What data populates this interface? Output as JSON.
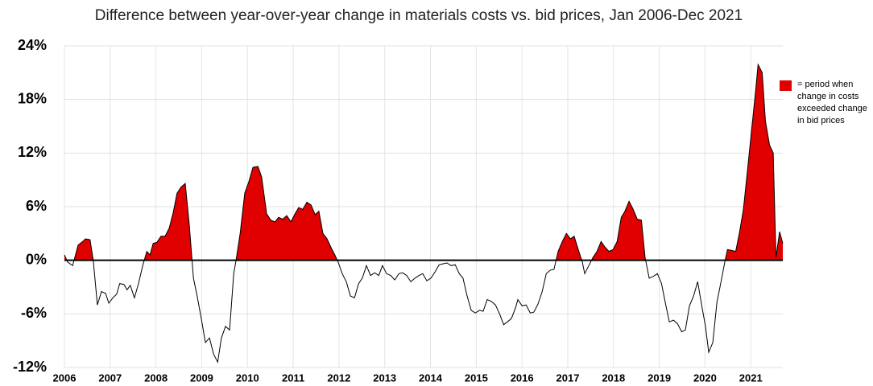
{
  "chart_data": {
    "type": "area",
    "title": "Difference between year-over-year change in materials costs vs. bid prices, Jan 2006-Dec 2021",
    "x": [
      2006.0,
      2006.07,
      2006.18,
      2006.3,
      2006.4,
      2006.46,
      2006.56,
      2006.63,
      2006.72,
      2006.81,
      2006.9,
      2006.97,
      2007.06,
      2007.14,
      2007.21,
      2007.3,
      2007.37,
      2007.44,
      2007.53,
      2007.62,
      2007.71,
      2007.8,
      2007.87,
      2007.94,
      2008.02,
      2008.11,
      2008.2,
      2008.29,
      2008.38,
      2008.46,
      2008.55,
      2008.64,
      2008.73,
      2008.82,
      2008.9,
      2008.99,
      2009.08,
      2009.17,
      2009.26,
      2009.35,
      2009.43,
      2009.52,
      2009.61,
      2009.7,
      2009.75,
      2009.84,
      2009.94,
      2010.03,
      2010.12,
      2010.23,
      2010.31,
      2010.42,
      2010.51,
      2010.6,
      2010.68,
      2010.77,
      2010.86,
      2010.95,
      2011.04,
      2011.12,
      2011.21,
      2011.3,
      2011.39,
      2011.48,
      2011.56,
      2011.65,
      2011.74,
      2011.83,
      2011.92,
      2011.99,
      2012.07,
      2012.16,
      2012.25,
      2012.34,
      2012.43,
      2012.51,
      2012.6,
      2012.69,
      2012.78,
      2012.87,
      2012.95,
      2013.04,
      2013.13,
      2013.22,
      2013.31,
      2013.39,
      2013.48,
      2013.57,
      2013.66,
      2013.75,
      2013.83,
      2013.92,
      2014.01,
      2014.1,
      2014.19,
      2014.27,
      2014.36,
      2014.45,
      2014.54,
      2014.63,
      2014.71,
      2014.8,
      2014.89,
      2014.98,
      2015.07,
      2015.15,
      2015.24,
      2015.33,
      2015.42,
      2015.51,
      2015.6,
      2015.68,
      2015.77,
      2015.86,
      2015.91,
      2016.0,
      2016.09,
      2016.18,
      2016.26,
      2016.35,
      2016.44,
      2016.53,
      2016.62,
      2016.7,
      2016.79,
      2016.88,
      2016.97,
      2017.06,
      2017.14,
      2017.23,
      2017.32,
      2017.37,
      2017.46,
      2017.55,
      2017.64,
      2017.73,
      2017.81,
      2017.9,
      2017.99,
      2018.08,
      2018.17,
      2018.25,
      2018.34,
      2018.43,
      2018.52,
      2018.61,
      2018.69,
      2018.78,
      2018.87,
      2018.96,
      2019.05,
      2019.13,
      2019.22,
      2019.31,
      2019.4,
      2019.49,
      2019.57,
      2019.66,
      2019.75,
      2019.84,
      2019.93,
      2020.01,
      2020.08,
      2020.17,
      2020.26,
      2020.35,
      2020.44,
      2020.49,
      2020.58,
      2020.67,
      2020.75,
      2020.84,
      2020.93,
      2021.02,
      2021.11,
      2021.16,
      2021.25,
      2021.32,
      2021.41,
      2021.49,
      2021.55,
      2021.63,
      2021.7
    ],
    "series": [
      {
        "name": "= period when change in costs exceeded change in bid prices",
        "color": "#e00000",
        "values": [
          0.6,
          -0.2,
          -0.6,
          1.7,
          2.1,
          2.4,
          2.3,
          0,
          -5,
          -3.5,
          -3.7,
          -4.8,
          -4.2,
          -3.8,
          -2.6,
          -2.7,
          -3.3,
          -2.8,
          -4.2,
          -2.6,
          -0.6,
          1.0,
          0.6,
          1.9,
          2.0,
          2.7,
          2.7,
          3.6,
          5.4,
          7.5,
          8.2,
          8.6,
          3.9,
          -2,
          -4,
          -6.5,
          -9.2,
          -8.7,
          -10.5,
          -11.4,
          -8.7,
          -7.4,
          -7.8,
          -1.5,
          0,
          3,
          7.5,
          8.8,
          10.4,
          10.5,
          9.3,
          5.2,
          4.5,
          4.3,
          4.8,
          4.6,
          5,
          4.3,
          5.2,
          5.9,
          5.7,
          6.5,
          6.2,
          5.1,
          5.5,
          3,
          2.4,
          1.4,
          0.5,
          -0.3,
          -1.5,
          -2.4,
          -4,
          -4.2,
          -2.6,
          -2,
          -0.6,
          -1.7,
          -1.4,
          -1.7,
          -0.6,
          -1.5,
          -1.7,
          -2.2,
          -1.5,
          -1.4,
          -1.7,
          -2.4,
          -2,
          -1.7,
          -1.5,
          -2.3,
          -2,
          -1.3,
          -0.5,
          -0.4,
          -0.3,
          -0.6,
          -0.5,
          -1.5,
          -2,
          -4,
          -5.6,
          -5.9,
          -5.6,
          -5.7,
          -4.4,
          -4.6,
          -5,
          -6,
          -7.2,
          -6.9,
          -6.5,
          -5.3,
          -4.4,
          -5.1,
          -5,
          -5.9,
          -5.8,
          -4.9,
          -3.5,
          -1.5,
          -1.1,
          -1,
          1,
          2.1,
          3,
          2.4,
          2.7,
          1.2,
          -0.2,
          -1.5,
          -0.6,
          0.3,
          1,
          2.1,
          1.5,
          1,
          1.2,
          2.1,
          4.8,
          5.5,
          6.6,
          5.7,
          4.6,
          4.5,
          0.3,
          -2,
          -1.8,
          -1.5,
          -2.6,
          -4.7,
          -6.9,
          -6.7,
          -7.1,
          -8,
          -7.8,
          -5.1,
          -4,
          -2.4,
          -5.1,
          -7.4,
          -10.3,
          -9.2,
          -4.7,
          -2.4,
          0,
          1.2,
          1.1,
          1,
          3,
          5.7,
          10.2,
          14.7,
          19.2,
          21.9,
          21,
          15.6,
          12.9,
          12,
          0.3,
          3.2,
          1.9
        ]
      }
    ],
    "line_color": "#000000",
    "xlim": [
      2006,
      2021.7
    ],
    "xticks": [
      2006,
      2007,
      2008,
      2009,
      2010,
      2011,
      2012,
      2013,
      2014,
      2015,
      2016,
      2017,
      2018,
      2019,
      2020,
      2021
    ],
    "ylim": [
      -12,
      24
    ],
    "yticks": [
      {
        "value": -12,
        "label": "-12%"
      },
      {
        "value": -6,
        "label": "-6%"
      },
      {
        "value": 0,
        "label": "0%"
      },
      {
        "value": 6,
        "label": "6%"
      },
      {
        "value": 12,
        "label": "12%"
      },
      {
        "value": 18,
        "label": "18%"
      },
      {
        "value": 24,
        "label": "24%"
      }
    ],
    "grid": true,
    "legend": "right"
  }
}
